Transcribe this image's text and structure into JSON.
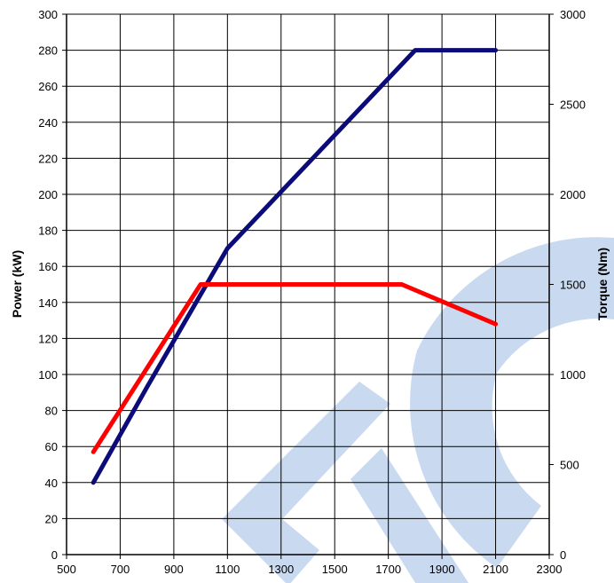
{
  "chart_data": {
    "type": "line",
    "x": {
      "ticks": [
        500,
        700,
        900,
        1100,
        1300,
        1500,
        1700,
        1900,
        2100,
        2300
      ],
      "range": [
        500,
        2300
      ]
    },
    "y_left": {
      "label": "Power (kW)",
      "ticks": [
        0,
        20,
        40,
        60,
        80,
        100,
        120,
        140,
        160,
        180,
        200,
        220,
        240,
        260,
        280,
        300
      ],
      "range": [
        0,
        300
      ]
    },
    "y_right": {
      "label": "Torque (Nm)",
      "ticks": [
        0,
        500,
        1000,
        1500,
        2000,
        2500,
        3000
      ],
      "range": [
        0,
        3000
      ]
    },
    "grid": true,
    "series": [
      {
        "axis": "left",
        "color": "#0b0b7a",
        "points": [
          [
            600,
            40
          ],
          [
            800,
            93
          ],
          [
            1100,
            170
          ],
          [
            1800,
            280
          ],
          [
            2100,
            280
          ]
        ]
      },
      {
        "axis": "right",
        "color": "#ff0000",
        "points": [
          [
            600,
            570
          ],
          [
            1000,
            1500
          ],
          [
            1750,
            1500
          ],
          [
            2100,
            1280
          ]
        ]
      }
    ],
    "watermark_color": "#c9daf0"
  }
}
